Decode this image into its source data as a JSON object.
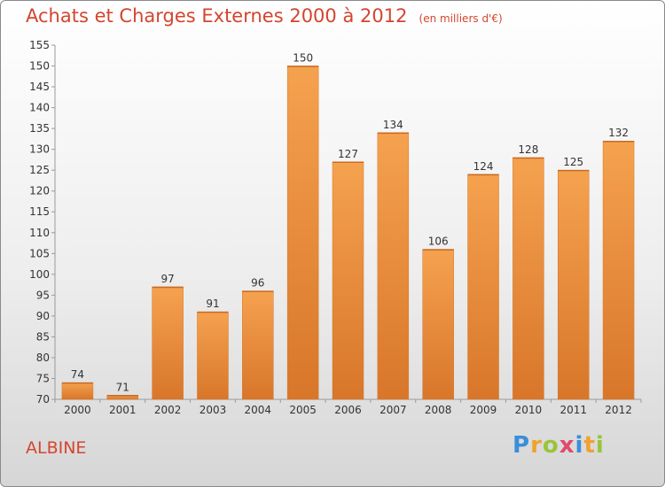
{
  "title": "Achats et Charges Externes 2000 à 2012",
  "unit": "(en milliers d'€)",
  "city": "ALBINE",
  "logo": {
    "letters": [
      "P",
      "r",
      "o",
      "x",
      "i",
      "t",
      "i"
    ],
    "colors": [
      "#3a8fd9",
      "#f0a22e",
      "#9ac43a",
      "#e04a6e",
      "#3a8fd9",
      "#f0a22e",
      "#9ac43a"
    ]
  },
  "colors": {
    "bar": "#f29a42",
    "bar_dark": "#d8762a",
    "title": "#d4452f"
  },
  "chart_data": {
    "type": "bar",
    "categories": [
      "2000",
      "2001",
      "2002",
      "2003",
      "2004",
      "2005",
      "2006",
      "2007",
      "2008",
      "2009",
      "2010",
      "2011",
      "2012"
    ],
    "values": [
      74,
      71,
      97,
      91,
      96,
      150,
      127,
      134,
      106,
      124,
      128,
      125,
      132
    ],
    "title": "Achats et Charges Externes 2000 à 2012",
    "ylim": [
      70,
      155
    ],
    "yticks": [
      70,
      75,
      80,
      85,
      90,
      95,
      100,
      105,
      110,
      115,
      120,
      125,
      130,
      135,
      140,
      145,
      150,
      155
    ],
    "grid": false
  }
}
